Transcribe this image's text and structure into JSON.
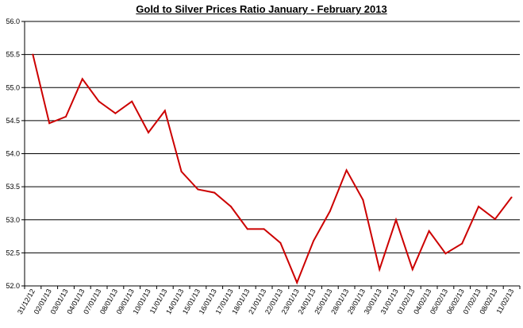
{
  "chart_data": {
    "type": "line",
    "title": "Gold to Silver Prices Ratio January - February  2013",
    "xlabel": "",
    "ylabel": "",
    "ylim": [
      52.0,
      56.0
    ],
    "yticks": [
      "52.0",
      "52.5",
      "53.0",
      "53.5",
      "54.0",
      "54.5",
      "55.0",
      "55.5",
      "56.0"
    ],
    "grid": true,
    "legend": "none",
    "categories": [
      "31/12/12",
      "02/01/13",
      "03/01/13",
      "04/01/13",
      "07/01/13",
      "08/01/13",
      "09/01/13",
      "10/01/13",
      "11/01/13",
      "14/01/13",
      "15/01/13",
      "16/01/13",
      "17/01/13",
      "18/01/13",
      "21/01/13",
      "22/01/13",
      "23/01/13",
      "24/01/13",
      "25/01/13",
      "28/01/13",
      "29/01/13",
      "30/01/13",
      "31/01/13",
      "01/02/13",
      "04/02/13",
      "05/02/13",
      "06/02/13",
      "07/02/13",
      "08/02/13",
      "11/02/13"
    ],
    "series": [
      {
        "color": "#cc0000",
        "values": [
          55.5,
          54.46,
          54.56,
          55.13,
          54.79,
          54.61,
          54.79,
          54.32,
          54.65,
          53.73,
          53.46,
          53.41,
          53.2,
          52.86,
          52.86,
          52.65,
          52.05,
          52.68,
          53.13,
          53.75,
          53.3,
          52.25,
          53.0,
          52.25,
          52.83,
          52.49,
          52.64,
          53.2,
          53.01,
          53.34
        ]
      }
    ]
  }
}
